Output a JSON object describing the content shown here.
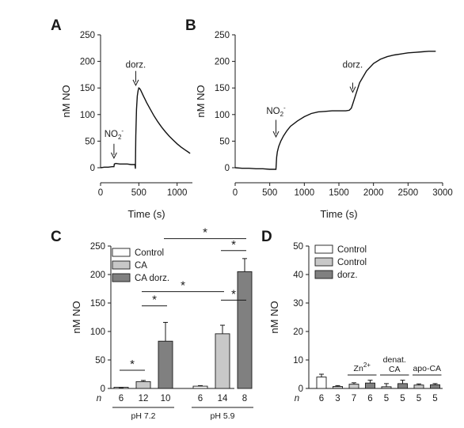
{
  "chart_data": [
    {
      "panel": "A",
      "type": "line",
      "ylabel": "nM NO",
      "xlabel": "Time (s)",
      "xlim": [
        0,
        1200
      ],
      "ylim": [
        0,
        250
      ],
      "xticks": [
        0,
        500,
        1000
      ],
      "yticks": [
        0,
        50,
        100,
        150,
        200,
        250
      ],
      "series": [
        {
          "x": [
            0,
            50,
            100,
            150,
            175,
            180,
            200,
            250,
            300,
            350,
            400,
            450,
            455,
            460,
            470,
            480,
            490,
            500,
            510,
            520,
            540,
            560,
            580,
            600,
            650,
            700,
            750,
            800,
            850,
            900,
            950,
            1000,
            1050,
            1100,
            1150,
            1170
          ],
          "y": [
            0,
            1,
            1,
            2,
            2,
            7,
            8,
            7,
            7,
            7,
            6,
            6,
            -2,
            60,
            110,
            135,
            145,
            150,
            149,
            147,
            141,
            135,
            129,
            123,
            110,
            97,
            86,
            76,
            67,
            59,
            52,
            45,
            39,
            34,
            29,
            27
          ]
        }
      ],
      "annotations": [
        {
          "text": "NO",
          "subscript": "2",
          "superscript": "-",
          "x": 175,
          "y_label": 58,
          "y_arrow_top": 45,
          "y_arrow_tip": 18
        },
        {
          "text": "dorz.",
          "x": 460,
          "y_label": 188,
          "y_arrow_top": 182,
          "y_arrow_tip": 155
        }
      ]
    },
    {
      "panel": "B",
      "type": "line",
      "ylabel": "nM NO",
      "xlabel": "Time (s)",
      "xlim": [
        0,
        3000
      ],
      "ylim": [
        0,
        250
      ],
      "xticks": [
        0,
        500,
        1000,
        1500,
        2000,
        2500,
        3000
      ],
      "yticks": [
        0,
        50,
        100,
        150,
        200,
        250
      ],
      "series": [
        {
          "x": [
            0,
            100,
            200,
            300,
            400,
            500,
            590,
            600,
            610,
            630,
            660,
            700,
            750,
            800,
            900,
            1000,
            1100,
            1200,
            1300,
            1400,
            1500,
            1600,
            1650,
            1680,
            1700,
            1750,
            1800,
            1900,
            2000,
            2100,
            2200,
            2300,
            2400,
            2500,
            2600,
            2700,
            2800,
            2900
          ],
          "y": [
            0,
            -1,
            -1,
            -2,
            -2,
            -3,
            -3,
            20,
            30,
            40,
            50,
            60,
            70,
            78,
            88,
            96,
            102,
            105,
            106,
            107,
            107,
            107,
            108,
            112,
            120,
            140,
            160,
            182,
            196,
            204,
            209,
            212,
            214,
            216,
            217,
            218,
            219,
            219
          ]
        }
      ],
      "annotations": [
        {
          "text": "NO",
          "subscript": "2",
          "superscript": "-",
          "x": 590,
          "y_label": 101,
          "y_arrow_top": 90,
          "y_arrow_tip": 58
        },
        {
          "text": "dorz.",
          "x": 1700,
          "y_label": 188,
          "y_arrow_top": 160,
          "y_arrow_tip": 142
        }
      ]
    },
    {
      "panel": "C",
      "type": "bar",
      "ylabel": "nM NO",
      "ylim": [
        0,
        250
      ],
      "yticks": [
        0,
        50,
        100,
        150,
        200,
        250
      ],
      "legend": {
        "placement": "top-left",
        "entries": [
          {
            "label": "Control",
            "color": "#ffffff"
          },
          {
            "label": "CA",
            "color": "#c8c8c8"
          },
          {
            "label": "CA dorz.",
            "color": "#808080"
          }
        ]
      },
      "n_label": "n",
      "bars": [
        {
          "value": 1,
          "error": 0.5,
          "n": "6",
          "color": "#ffffff"
        },
        {
          "value": 12,
          "error": 2,
          "n": "12",
          "color": "#c8c8c8"
        },
        {
          "value": 83,
          "error": 33,
          "n": "10",
          "color": "#808080"
        },
        {
          "value": 4,
          "error": 1,
          "n": "6",
          "color": "#ffffff"
        },
        {
          "value": 96,
          "error": 15,
          "n": "14",
          "color": "#c8c8c8"
        },
        {
          "value": 205,
          "error": 23,
          "n": "8",
          "color": "#808080"
        }
      ],
      "groups": [
        {
          "label": "pH 7.2",
          "from": 0,
          "to": 2
        },
        {
          "label": "pH 5.9",
          "from": 3,
          "to": 5
        }
      ],
      "significance": [
        {
          "from": 0,
          "to": 1,
          "y": 32,
          "label": "*"
        },
        {
          "from": 1,
          "to": 2,
          "y": 145,
          "label": "*"
        },
        {
          "from": 4,
          "to": 5,
          "y": 155,
          "label": "*"
        },
        {
          "from": 1,
          "to": 4,
          "y": 170,
          "label": "*"
        },
        {
          "from": 4,
          "to": 5,
          "y": 242,
          "label": "*"
        },
        {
          "from": 2,
          "to": 5,
          "y": 263,
          "label": "*"
        }
      ]
    },
    {
      "panel": "D",
      "type": "bar",
      "ylabel": "nM NO",
      "ylim": [
        0,
        50
      ],
      "yticks": [
        0,
        10,
        20,
        30,
        40,
        50
      ],
      "legend": {
        "placement": "top-left",
        "entries": [
          {
            "label": "Control",
            "color": "#ffffff"
          },
          {
            "label": "Control",
            "color": "#c8c8c8"
          },
          {
            "label": "dorz.",
            "color": "#808080"
          }
        ]
      },
      "n_label": "n",
      "bars": [
        {
          "value": 4,
          "error": 1,
          "n": "6",
          "color": "#ffffff"
        },
        {
          "value": 0.7,
          "error": 0.3,
          "n": "3",
          "color": "#c8c8c8"
        },
        {
          "value": 1.5,
          "error": 0.5,
          "n": "7",
          "color": "#c8c8c8"
        },
        {
          "value": 1.9,
          "error": 1.0,
          "n": "6",
          "color": "#808080"
        },
        {
          "value": 0.6,
          "error": 1.1,
          "n": "5",
          "color": "#c8c8c8"
        },
        {
          "value": 1.7,
          "error": 1.2,
          "n": "5",
          "color": "#808080"
        },
        {
          "value": 1.2,
          "error": 0.4,
          "n": "5",
          "color": "#c8c8c8"
        },
        {
          "value": 1.3,
          "error": 0.4,
          "n": "5",
          "color": "#808080"
        }
      ],
      "groups": [
        {
          "label": "Zn",
          "superscript": "2+",
          "from": 2,
          "to": 3
        },
        {
          "label": "denat.",
          "line2": "CA",
          "from": 4,
          "to": 5
        },
        {
          "label": "apo-CA",
          "from": 6,
          "to": 7
        }
      ]
    }
  ]
}
